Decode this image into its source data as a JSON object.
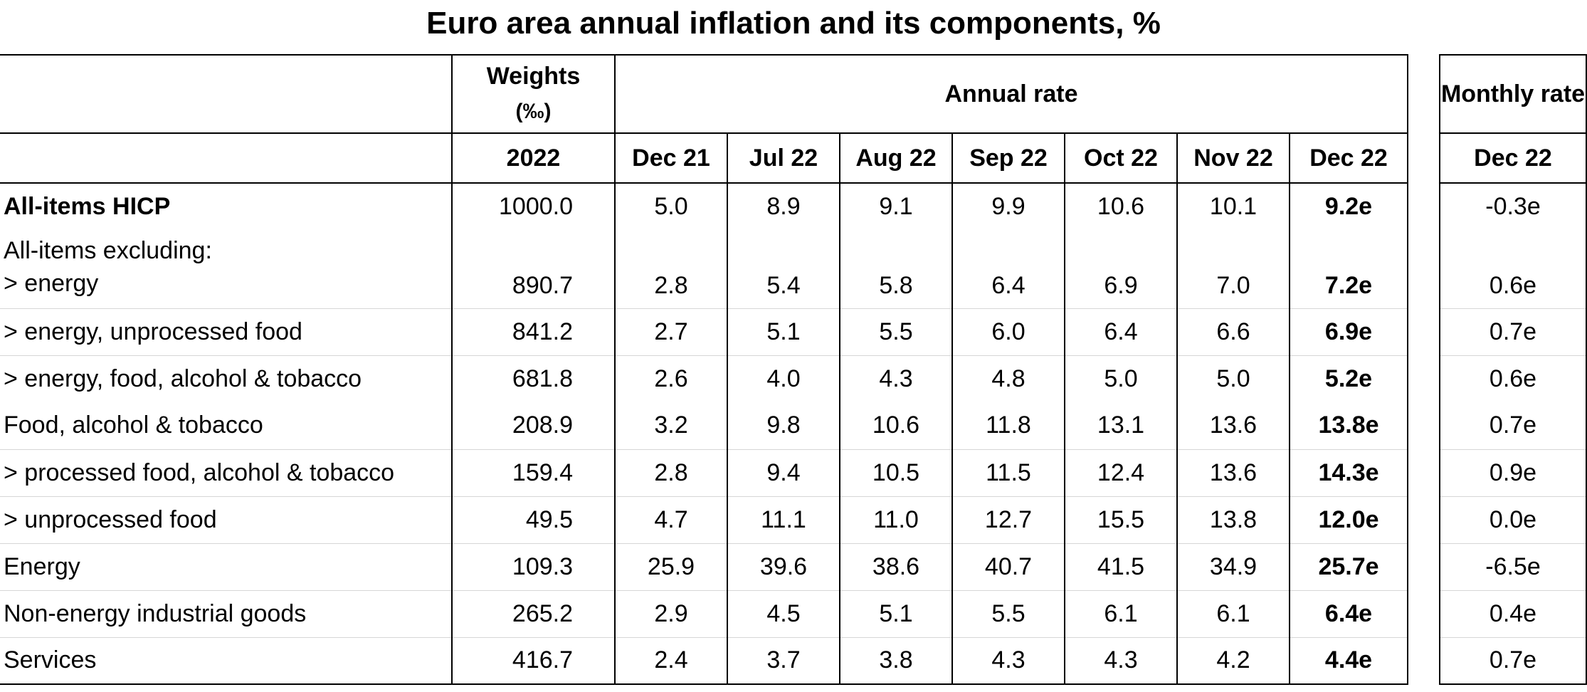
{
  "title": "Euro area annual inflation and its components, %",
  "header": {
    "weights_label": "Weights",
    "weights_unit": "(‰)",
    "annual_rate_label": "Annual rate",
    "monthly_rate_label": "Monthly rate",
    "weights_year": "2022",
    "annual_periods": [
      "Dec 21",
      "Jul 22",
      "Aug 22",
      "Sep 22",
      "Oct 22",
      "Nov 22",
      "Dec 22"
    ],
    "monthly_period": "Dec 22"
  },
  "rows": [
    {
      "label": "All-items HICP",
      "weight": "1000.0",
      "annual": [
        "5.0",
        "8.9",
        "9.1",
        "9.9",
        "10.6",
        "10.1",
        "9.2e"
      ],
      "monthly": "-0.3e"
    },
    {
      "group_label": "All-items excluding:",
      "label": "> energy",
      "weight": "890.7",
      "annual": [
        "2.8",
        "5.4",
        "5.8",
        "6.4",
        "6.9",
        "7.0",
        "7.2e"
      ],
      "monthly": "0.6e"
    },
    {
      "label": "> energy, unprocessed food",
      "weight": "841.2",
      "annual": [
        "2.7",
        "5.1",
        "5.5",
        "6.0",
        "6.4",
        "6.6",
        "6.9e"
      ],
      "monthly": "0.7e"
    },
    {
      "label": "> energy, food, alcohol & tobacco",
      "weight": "681.8",
      "annual": [
        "2.6",
        "4.0",
        "4.3",
        "4.8",
        "5.0",
        "5.0",
        "5.2e"
      ],
      "monthly": "0.6e"
    },
    {
      "label": "Food, alcohol & tobacco",
      "weight": "208.9",
      "annual": [
        "3.2",
        "9.8",
        "10.6",
        "11.8",
        "13.1",
        "13.6",
        "13.8e"
      ],
      "monthly": "0.7e"
    },
    {
      "label": "> processed food, alcohol & tobacco",
      "weight": "159.4",
      "annual": [
        "2.8",
        "9.4",
        "10.5",
        "11.5",
        "12.4",
        "13.6",
        "14.3e"
      ],
      "monthly": "0.9e"
    },
    {
      "label": "> unprocessed food",
      "weight": "49.5",
      "annual": [
        "4.7",
        "11.1",
        "11.0",
        "12.7",
        "15.5",
        "13.8",
        "12.0e"
      ],
      "monthly": "0.0e"
    },
    {
      "label": "Energy",
      "weight": "109.3",
      "annual": [
        "25.9",
        "39.6",
        "38.6",
        "40.7",
        "41.5",
        "34.9",
        "25.7e"
      ],
      "monthly": "-6.5e"
    },
    {
      "label": "Non-energy industrial goods",
      "weight": "265.2",
      "annual": [
        "2.9",
        "4.5",
        "5.1",
        "5.5",
        "6.1",
        "6.1",
        "6.4e"
      ],
      "monthly": "0.4e"
    },
    {
      "label": "Services",
      "weight": "416.7",
      "annual": [
        "2.4",
        "3.7",
        "3.8",
        "4.3",
        "4.3",
        "4.2",
        "4.4e"
      ],
      "monthly": "0.7e"
    }
  ]
}
